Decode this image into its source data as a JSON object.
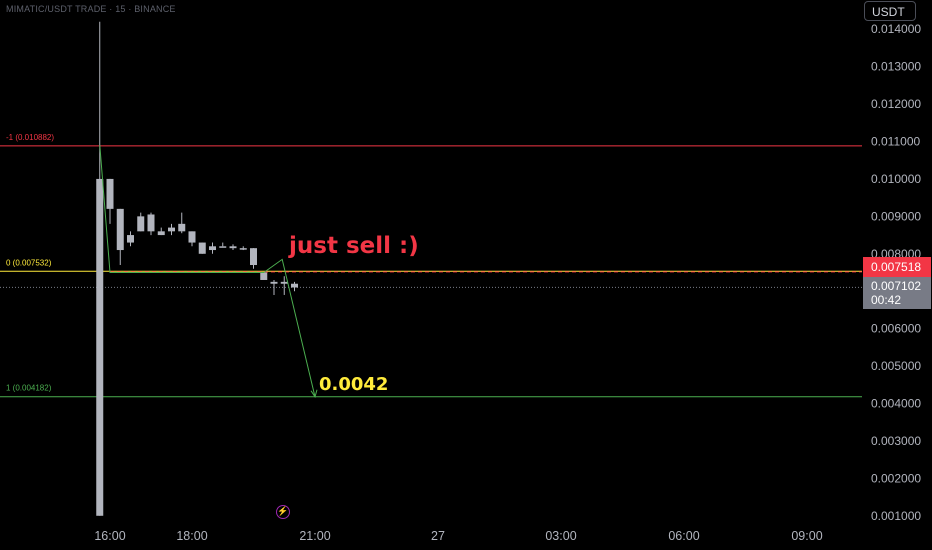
{
  "header": {
    "symbol_title": "MIMATIC/USDT TRADE · 15 · BINANCE",
    "currency": "USDT"
  },
  "price_tags": {
    "last_price": "0.007518",
    "current_price": "0.007102",
    "countdown": "00:42"
  },
  "annotations": {
    "sell_text": "just sell :)",
    "target_text": "0.0042"
  },
  "fib_levels": [
    {
      "label": "-1 (0.010882)",
      "price": 0.010882,
      "color": "#f23645"
    },
    {
      "label": "0 (0.007532)",
      "price": 0.007532,
      "color": "#ffeb3b"
    },
    {
      "label": "1 (0.004182)",
      "price": 0.004182,
      "color": "#4caf50"
    }
  ],
  "colors": {
    "background": "#000000",
    "candle": "#b2b5be",
    "projection": "#4caf50",
    "dashed_price_line": "#f23645"
  },
  "chart_data": {
    "type": "candlestick",
    "y_ticks": [
      "0.014000",
      "0.013000",
      "0.012000",
      "0.011000",
      "0.010000",
      "0.009000",
      "0.008000",
      "0.007000",
      "0.006000",
      "0.005000",
      "0.004000",
      "0.003000",
      "0.002000",
      "0.001000"
    ],
    "ylim": [
      0.001,
      0.0142
    ],
    "x_ticks": [
      {
        "label": "16:00",
        "h": 16.0
      },
      {
        "label": "18:00",
        "h": 18.0
      },
      {
        "label": "21:00",
        "h": 21.0
      },
      {
        "label": "27",
        "h": 24.0
      },
      {
        "label": "03:00",
        "h": 27.0
      },
      {
        "label": "06:00",
        "h": 30.0
      },
      {
        "label": "09:00",
        "h": 33.0
      }
    ],
    "candles": [
      {
        "t": 15.75,
        "o": 0.001,
        "h": 0.0142,
        "l": 0.001,
        "c": 0.01
      },
      {
        "t": 16.0,
        "o": 0.01,
        "h": 0.01,
        "l": 0.0088,
        "c": 0.0092
      },
      {
        "t": 16.25,
        "o": 0.0092,
        "h": 0.0092,
        "l": 0.0077,
        "c": 0.0081
      },
      {
        "t": 16.5,
        "o": 0.0083,
        "h": 0.0086,
        "l": 0.0082,
        "c": 0.0085
      },
      {
        "t": 16.75,
        "o": 0.0086,
        "h": 0.0091,
        "l": 0.0086,
        "c": 0.009
      },
      {
        "t": 17.0,
        "o": 0.00905,
        "h": 0.0091,
        "l": 0.0085,
        "c": 0.0086
      },
      {
        "t": 17.25,
        "o": 0.0086,
        "h": 0.0087,
        "l": 0.0085,
        "c": 0.0085
      },
      {
        "t": 17.5,
        "o": 0.0086,
        "h": 0.0088,
        "l": 0.0085,
        "c": 0.0087
      },
      {
        "t": 17.75,
        "o": 0.0086,
        "h": 0.0091,
        "l": 0.00855,
        "c": 0.0088
      },
      {
        "t": 18.0,
        "o": 0.0086,
        "h": 0.0086,
        "l": 0.0082,
        "c": 0.0083
      },
      {
        "t": 18.25,
        "o": 0.0083,
        "h": 0.0083,
        "l": 0.008,
        "c": 0.008
      },
      {
        "t": 18.5,
        "o": 0.0081,
        "h": 0.0083,
        "l": 0.008,
        "c": 0.0082
      },
      {
        "t": 18.75,
        "o": 0.0082,
        "h": 0.0083,
        "l": 0.0082,
        "c": 0.0082
      },
      {
        "t": 19.0,
        "o": 0.0082,
        "h": 0.00825,
        "l": 0.0081,
        "c": 0.00815
      },
      {
        "t": 19.25,
        "o": 0.00815,
        "h": 0.0082,
        "l": 0.0081,
        "c": 0.00815
      },
      {
        "t": 19.5,
        "o": 0.00815,
        "h": 0.00815,
        "l": 0.0076,
        "c": 0.0077
      },
      {
        "t": 19.75,
        "o": 0.0075,
        "h": 0.0075,
        "l": 0.0073,
        "c": 0.0073
      },
      {
        "t": 20.0,
        "o": 0.00725,
        "h": 0.0073,
        "l": 0.0069,
        "c": 0.0072
      },
      {
        "t": 20.25,
        "o": 0.00725,
        "h": 0.0074,
        "l": 0.0069,
        "c": 0.0072
      },
      {
        "t": 20.5,
        "o": 0.0072,
        "h": 0.00725,
        "l": 0.007,
        "c": 0.0071
      }
    ],
    "projection_path": [
      {
        "t": 15.75,
        "p": 0.0109
      },
      {
        "t": 16.0,
        "p": 0.0075
      },
      {
        "t": 19.75,
        "p": 0.0075
      },
      {
        "t": 20.2,
        "p": 0.00785
      },
      {
        "t": 21.0,
        "p": 0.00418
      }
    ],
    "dashed_price": 0.007518,
    "dotted_price": 0.007102
  }
}
